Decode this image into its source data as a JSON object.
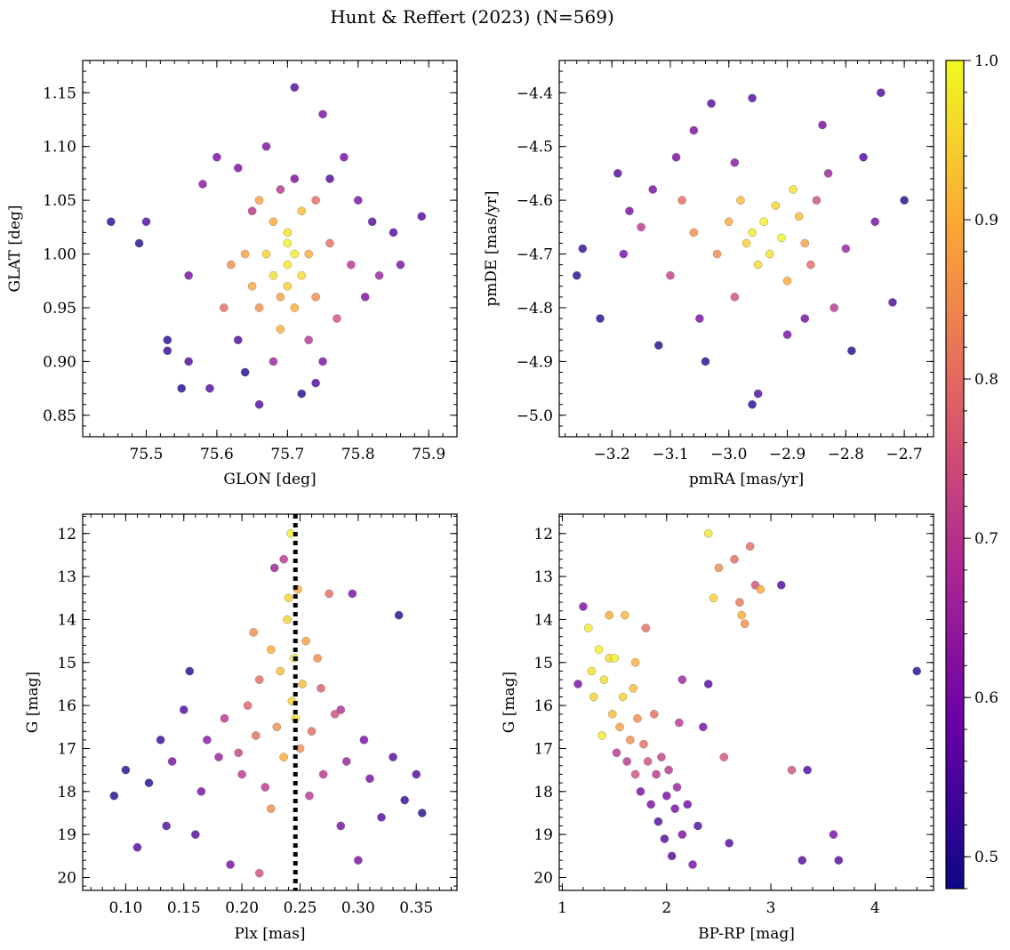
{
  "figure": {
    "title": "Hunt & Reffert (2023) (N=569)"
  },
  "colorbar": {
    "range": [
      0.48,
      1.0
    ],
    "ticks": [
      0.5,
      0.6,
      0.7,
      0.8,
      0.9,
      1.0
    ],
    "tick_labels": [
      "0.5",
      "0.6",
      "0.7",
      "0.8",
      "0.9",
      "1.0"
    ],
    "colormap": "plasma"
  },
  "colors": {
    "plasma": [
      "#0d0887",
      "#6a00a8",
      "#b12a90",
      "#e16462",
      "#fca636",
      "#f0f921"
    ],
    "marker_alpha": 0.8,
    "marker_edge": "#555555",
    "reference_line": "#000000"
  },
  "chart_data": [
    {
      "type": "scatter",
      "id": "glon-glat",
      "xlabel": "GLON [deg]",
      "ylabel": "GLAT [deg]",
      "xlim": [
        75.41,
        75.94
      ],
      "ylim": [
        0.83,
        1.18
      ],
      "xticks": [
        75.5,
        75.6,
        75.7,
        75.8,
        75.9
      ],
      "xtick_labels": [
        "75.5",
        "75.6",
        "75.7",
        "75.8",
        "75.9"
      ],
      "yticks": [
        0.85,
        0.9,
        0.95,
        1.0,
        1.05,
        1.1,
        1.15
      ],
      "ytick_labels": [
        "0.85",
        "0.90",
        "0.95",
        "1.00",
        "1.05",
        "1.10",
        "1.15"
      ],
      "color_by": "membership probability",
      "points": [
        [
          75.45,
          1.03,
          0.5
        ],
        [
          75.49,
          1.01,
          0.5
        ],
        [
          75.5,
          1.03,
          0.55
        ],
        [
          75.53,
          0.92,
          0.5
        ],
        [
          75.53,
          0.91,
          0.52
        ],
        [
          75.55,
          0.875,
          0.5
        ],
        [
          75.56,
          0.9,
          0.55
        ],
        [
          75.56,
          0.98,
          0.6
        ],
        [
          75.58,
          1.065,
          0.62
        ],
        [
          75.59,
          0.875,
          0.55
        ],
        [
          75.6,
          1.09,
          0.6
        ],
        [
          75.61,
          0.95,
          0.8
        ],
        [
          75.62,
          0.99,
          0.85
        ],
        [
          75.63,
          0.92,
          0.55
        ],
        [
          75.64,
          0.89,
          0.5
        ],
        [
          75.64,
          1.0,
          0.88
        ],
        [
          75.65,
          0.97,
          0.9
        ],
        [
          75.65,
          1.04,
          0.7
        ],
        [
          75.66,
          0.86,
          0.55
        ],
        [
          75.66,
          0.95,
          0.85
        ],
        [
          75.67,
          1.0,
          0.95
        ],
        [
          75.67,
          1.1,
          0.6
        ],
        [
          75.68,
          0.98,
          0.97
        ],
        [
          75.68,
          1.03,
          0.9
        ],
        [
          75.69,
          0.93,
          0.9
        ],
        [
          75.69,
          0.96,
          0.88
        ],
        [
          75.7,
          0.99,
          0.98
        ],
        [
          75.7,
          1.01,
          0.99
        ],
        [
          75.7,
          1.02,
          0.97
        ],
        [
          75.7,
          0.97,
          0.95
        ],
        [
          75.71,
          1.0,
          0.99
        ],
        [
          75.71,
          0.95,
          0.9
        ],
        [
          75.71,
          1.155,
          0.55
        ],
        [
          75.71,
          1.07,
          0.6
        ],
        [
          75.72,
          0.98,
          0.96
        ],
        [
          75.72,
          1.04,
          0.92
        ],
        [
          75.72,
          0.87,
          0.5
        ],
        [
          75.73,
          1.0,
          0.9
        ],
        [
          75.73,
          0.92,
          0.7
        ],
        [
          75.74,
          0.96,
          0.85
        ],
        [
          75.74,
          1.05,
          0.8
        ],
        [
          75.75,
          1.13,
          0.6
        ],
        [
          75.75,
          0.9,
          0.6
        ],
        [
          75.76,
          1.01,
          0.8
        ],
        [
          75.77,
          0.94,
          0.75
        ],
        [
          75.78,
          1.09,
          0.6
        ],
        [
          75.79,
          0.99,
          0.7
        ],
        [
          75.8,
          1.05,
          0.6
        ],
        [
          75.81,
          0.96,
          0.6
        ],
        [
          75.82,
          1.03,
          0.55
        ],
        [
          75.83,
          0.98,
          0.65
        ],
        [
          75.85,
          1.02,
          0.55
        ],
        [
          75.86,
          0.99,
          0.6
        ],
        [
          75.89,
          1.035,
          0.55
        ],
        [
          75.66,
          1.05,
          0.88
        ],
        [
          75.69,
          1.06,
          0.7
        ],
        [
          75.68,
          0.9,
          0.65
        ],
        [
          75.63,
          1.08,
          0.6
        ],
        [
          75.76,
          1.07,
          0.55
        ],
        [
          75.74,
          0.88,
          0.55
        ]
      ]
    },
    {
      "type": "scatter",
      "id": "pm",
      "xlabel": "pmRA [mas/yr]",
      "ylabel": "pmDE [mas/yr]",
      "xlim": [
        -3.29,
        -2.65
      ],
      "ylim": [
        -5.04,
        -4.34
      ],
      "xticks": [
        -3.2,
        -3.1,
        -3.0,
        -2.9,
        -2.8,
        -2.7
      ],
      "xtick_labels": [
        "−3.2",
        "−3.1",
        "−3.0",
        "−2.9",
        "−2.8",
        "−2.7"
      ],
      "yticks": [
        -5.0,
        -4.9,
        -4.8,
        -4.7,
        -4.6,
        -4.5,
        -4.4
      ],
      "ytick_labels": [
        "−5.0",
        "−4.9",
        "−4.8",
        "−4.7",
        "−4.6",
        "−4.5",
        "−4.4"
      ],
      "color_by": "membership probability",
      "points": [
        [
          -3.26,
          -4.74,
          0.5
        ],
        [
          -3.25,
          -4.69,
          0.52
        ],
        [
          -3.22,
          -4.82,
          0.5
        ],
        [
          -3.19,
          -4.55,
          0.55
        ],
        [
          -3.18,
          -4.7,
          0.6
        ],
        [
          -3.15,
          -4.65,
          0.7
        ],
        [
          -3.13,
          -4.58,
          0.6
        ],
        [
          -3.12,
          -4.87,
          0.5
        ],
        [
          -3.1,
          -4.74,
          0.72
        ],
        [
          -3.08,
          -4.6,
          0.8
        ],
        [
          -3.06,
          -4.66,
          0.85
        ],
        [
          -3.05,
          -4.82,
          0.6
        ],
        [
          -3.04,
          -4.9,
          0.5
        ],
        [
          -3.02,
          -4.7,
          0.85
        ],
        [
          -3.0,
          -4.64,
          0.9
        ],
        [
          -2.99,
          -4.78,
          0.75
        ],
        [
          -2.98,
          -4.6,
          0.92
        ],
        [
          -2.97,
          -4.68,
          0.95
        ],
        [
          -2.96,
          -4.66,
          0.98
        ],
        [
          -2.95,
          -4.72,
          0.96
        ],
        [
          -2.94,
          -4.64,
          0.99
        ],
        [
          -2.93,
          -4.7,
          0.97
        ],
        [
          -2.92,
          -4.61,
          0.95
        ],
        [
          -2.91,
          -4.67,
          0.99
        ],
        [
          -2.9,
          -4.75,
          0.9
        ],
        [
          -2.89,
          -4.58,
          0.97
        ],
        [
          -2.88,
          -4.63,
          0.92
        ],
        [
          -2.87,
          -4.68,
          0.88
        ],
        [
          -2.86,
          -4.72,
          0.8
        ],
        [
          -2.85,
          -4.6,
          0.75
        ],
        [
          -2.84,
          -4.46,
          0.6
        ],
        [
          -2.83,
          -4.55,
          0.65
        ],
        [
          -2.82,
          -4.8,
          0.7
        ],
        [
          -2.8,
          -4.69,
          0.65
        ],
        [
          -2.79,
          -4.88,
          0.5
        ],
        [
          -2.77,
          -4.52,
          0.55
        ],
        [
          -2.75,
          -4.64,
          0.6
        ],
        [
          -2.74,
          -4.4,
          0.55
        ],
        [
          -2.72,
          -4.79,
          0.55
        ],
        [
          -2.7,
          -4.6,
          0.5
        ],
        [
          -2.96,
          -4.98,
          0.5
        ],
        [
          -2.96,
          -4.41,
          0.55
        ],
        [
          -3.03,
          -4.42,
          0.55
        ],
        [
          -2.95,
          -4.96,
          0.55
        ],
        [
          -2.9,
          -4.85,
          0.6
        ],
        [
          -3.06,
          -4.47,
          0.6
        ],
        [
          -2.99,
          -4.53,
          0.62
        ],
        [
          -3.09,
          -4.52,
          0.6
        ],
        [
          -2.87,
          -4.82,
          0.6
        ],
        [
          -3.17,
          -4.62,
          0.6
        ]
      ]
    },
    {
      "type": "scatter",
      "id": "plx-g",
      "xlabel": "Plx [mas]",
      "ylabel": "G [mag]",
      "xlim": [
        0.063,
        0.385
      ],
      "ylim": [
        20.3,
        11.55
      ],
      "xticks": [
        0.1,
        0.15,
        0.2,
        0.25,
        0.3,
        0.35
      ],
      "xtick_labels": [
        "0.10",
        "0.15",
        "0.20",
        "0.25",
        "0.30",
        "0.35"
      ],
      "yticks": [
        12,
        13,
        14,
        15,
        16,
        17,
        18,
        19,
        20
      ],
      "ytick_labels": [
        "12",
        "13",
        "14",
        "15",
        "16",
        "17",
        "18",
        "19",
        "20"
      ],
      "reference_line_x": 0.246,
      "color_by": "membership probability",
      "points": [
        [
          0.09,
          18.1,
          0.5
        ],
        [
          0.1,
          17.5,
          0.5
        ],
        [
          0.11,
          19.3,
          0.55
        ],
        [
          0.12,
          17.8,
          0.5
        ],
        [
          0.13,
          16.8,
          0.52
        ],
        [
          0.135,
          18.8,
          0.55
        ],
        [
          0.14,
          17.3,
          0.6
        ],
        [
          0.15,
          16.1,
          0.55
        ],
        [
          0.155,
          15.2,
          0.5
        ],
        [
          0.16,
          19.0,
          0.55
        ],
        [
          0.165,
          18.0,
          0.6
        ],
        [
          0.17,
          16.8,
          0.62
        ],
        [
          0.18,
          17.2,
          0.65
        ],
        [
          0.185,
          16.3,
          0.7
        ],
        [
          0.19,
          19.7,
          0.6
        ],
        [
          0.2,
          17.6,
          0.7
        ],
        [
          0.205,
          16.0,
          0.78
        ],
        [
          0.21,
          14.3,
          0.85
        ],
        [
          0.215,
          15.4,
          0.8
        ],
        [
          0.22,
          17.9,
          0.7
        ],
        [
          0.225,
          14.7,
          0.9
        ],
        [
          0.23,
          16.5,
          0.85
        ],
        [
          0.233,
          15.2,
          0.92
        ],
        [
          0.236,
          17.2,
          0.9
        ],
        [
          0.239,
          14.0,
          0.95
        ],
        [
          0.242,
          12.0,
          0.99
        ],
        [
          0.243,
          15.9,
          0.95
        ],
        [
          0.245,
          14.9,
          0.98
        ],
        [
          0.246,
          16.3,
          0.97
        ],
        [
          0.248,
          13.3,
          0.9
        ],
        [
          0.25,
          17.0,
          0.85
        ],
        [
          0.252,
          15.5,
          0.92
        ],
        [
          0.255,
          14.5,
          0.88
        ],
        [
          0.258,
          18.1,
          0.7
        ],
        [
          0.26,
          16.6,
          0.8
        ],
        [
          0.265,
          14.9,
          0.85
        ],
        [
          0.27,
          17.6,
          0.7
        ],
        [
          0.275,
          13.4,
          0.8
        ],
        [
          0.28,
          16.2,
          0.75
        ],
        [
          0.285,
          18.8,
          0.6
        ],
        [
          0.29,
          17.3,
          0.65
        ],
        [
          0.295,
          13.4,
          0.6
        ],
        [
          0.3,
          19.6,
          0.6
        ],
        [
          0.305,
          16.8,
          0.6
        ],
        [
          0.31,
          17.7,
          0.6
        ],
        [
          0.32,
          18.6,
          0.55
        ],
        [
          0.33,
          17.2,
          0.55
        ],
        [
          0.335,
          13.9,
          0.5
        ],
        [
          0.34,
          18.2,
          0.52
        ],
        [
          0.35,
          17.6,
          0.55
        ],
        [
          0.355,
          18.5,
          0.5
        ],
        [
          0.215,
          19.9,
          0.75
        ],
        [
          0.228,
          12.8,
          0.65
        ],
        [
          0.236,
          12.6,
          0.7
        ],
        [
          0.225,
          18.4,
          0.85
        ],
        [
          0.24,
          13.5,
          0.95
        ],
        [
          0.212,
          16.7,
          0.8
        ],
        [
          0.268,
          15.6,
          0.78
        ],
        [
          0.197,
          17.1,
          0.72
        ],
        [
          0.285,
          16.1,
          0.68
        ]
      ]
    },
    {
      "type": "scatter",
      "id": "cmd",
      "xlabel": "BP-RP [mag]",
      "ylabel": "G [mag]",
      "xlim": [
        0.97,
        4.56
      ],
      "ylim": [
        20.3,
        11.55
      ],
      "xticks": [
        1,
        2,
        3,
        4
      ],
      "xtick_labels": [
        "1",
        "2",
        "3",
        "4"
      ],
      "yticks": [
        12,
        13,
        14,
        15,
        16,
        17,
        18,
        19,
        20
      ],
      "ytick_labels": [
        "12",
        "13",
        "14",
        "15",
        "16",
        "17",
        "18",
        "19",
        "20"
      ],
      "color_by": "membership probability",
      "points": [
        [
          1.15,
          15.5,
          0.6
        ],
        [
          1.2,
          13.7,
          0.6
        ],
        [
          1.25,
          14.2,
          0.98
        ],
        [
          1.28,
          15.2,
          0.97
        ],
        [
          1.3,
          15.8,
          0.95
        ],
        [
          1.35,
          14.7,
          0.99
        ],
        [
          1.38,
          16.7,
          0.98
        ],
        [
          1.4,
          15.4,
          0.96
        ],
        [
          1.45,
          13.9,
          0.9
        ],
        [
          1.48,
          16.2,
          0.92
        ],
        [
          1.5,
          14.9,
          0.99
        ],
        [
          1.52,
          17.1,
          0.7
        ],
        [
          1.55,
          16.5,
          0.88
        ],
        [
          1.58,
          15.8,
          0.95
        ],
        [
          1.6,
          13.9,
          0.92
        ],
        [
          1.62,
          17.3,
          0.7
        ],
        [
          1.65,
          16.8,
          0.85
        ],
        [
          1.68,
          15.6,
          0.92
        ],
        [
          1.7,
          17.6,
          0.75
        ],
        [
          1.72,
          16.3,
          0.85
        ],
        [
          1.75,
          18.0,
          0.6
        ],
        [
          1.78,
          16.9,
          0.8
        ],
        [
          1.8,
          14.2,
          0.8
        ],
        [
          1.82,
          17.3,
          0.75
        ],
        [
          1.85,
          18.3,
          0.6
        ],
        [
          1.88,
          16.2,
          0.8
        ],
        [
          1.9,
          17.6,
          0.7
        ],
        [
          1.92,
          18.7,
          0.55
        ],
        [
          1.95,
          17.2,
          0.72
        ],
        [
          1.98,
          19.1,
          0.55
        ],
        [
          2.0,
          18.1,
          0.6
        ],
        [
          2.02,
          17.5,
          0.7
        ],
        [
          2.05,
          19.5,
          0.55
        ],
        [
          2.08,
          18.4,
          0.6
        ],
        [
          2.1,
          17.9,
          0.65
        ],
        [
          2.12,
          16.4,
          0.7
        ],
        [
          2.15,
          19.0,
          0.6
        ],
        [
          2.2,
          18.3,
          0.58
        ],
        [
          2.25,
          19.7,
          0.6
        ],
        [
          2.3,
          18.8,
          0.55
        ],
        [
          2.35,
          16.5,
          0.6
        ],
        [
          2.4,
          12.0,
          0.98
        ],
        [
          2.45,
          13.5,
          0.95
        ],
        [
          2.5,
          12.8,
          0.85
        ],
        [
          2.55,
          17.2,
          0.75
        ],
        [
          2.6,
          19.2,
          0.55
        ],
        [
          2.65,
          12.6,
          0.8
        ],
        [
          2.7,
          13.6,
          0.82
        ],
        [
          2.72,
          13.9,
          0.9
        ],
        [
          2.75,
          14.1,
          0.85
        ],
        [
          2.8,
          12.3,
          0.8
        ],
        [
          2.85,
          13.2,
          0.75
        ],
        [
          2.9,
          13.3,
          0.9
        ],
        [
          3.1,
          13.2,
          0.55
        ],
        [
          3.2,
          17.5,
          0.75
        ],
        [
          3.3,
          19.6,
          0.55
        ],
        [
          3.35,
          17.5,
          0.55
        ],
        [
          3.6,
          19.0,
          0.6
        ],
        [
          3.65,
          19.6,
          0.55
        ],
        [
          4.4,
          15.2,
          0.5
        ],
        [
          2.4,
          15.5,
          0.55
        ],
        [
          2.15,
          15.4,
          0.65
        ],
        [
          1.45,
          14.9,
          0.96
        ],
        [
          1.7,
          15.0,
          0.9
        ]
      ]
    }
  ]
}
